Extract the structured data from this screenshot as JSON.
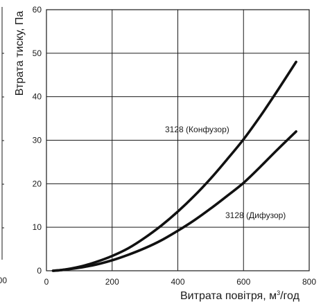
{
  "chart_data": {
    "type": "line",
    "xlabel": {
      "prefix": "Витрата повітря, м",
      "superscript": "3",
      "suffix": "/год"
    },
    "ylabel": "Втрата тиску, Па",
    "xlim": [
      0,
      800
    ],
    "ylim": [
      0,
      60
    ],
    "x_ticks": [
      0,
      200,
      400,
      600,
      800
    ],
    "y_ticks": [
      0,
      10,
      20,
      30,
      40,
      50,
      60
    ],
    "grid": true,
    "series": [
      {
        "name": "3128 (Конфузор)",
        "x": [
          20,
          50,
          100,
          150,
          200,
          250,
          300,
          350,
          400,
          450,
          500,
          550,
          600,
          650,
          700,
          760
        ],
        "values": [
          0.0,
          0.2,
          0.9,
          2.0,
          3.4,
          5.2,
          7.6,
          10.4,
          13.6,
          17.2,
          21.2,
          25.6,
          30.2,
          35.4,
          41.0,
          48.0
        ]
      },
      {
        "name": "3128 (Дифузор)",
        "x": [
          20,
          50,
          100,
          150,
          200,
          250,
          300,
          350,
          400,
          450,
          500,
          550,
          600,
          650,
          700,
          760
        ],
        "values": [
          0.0,
          0.2,
          0.7,
          1.4,
          2.4,
          3.7,
          5.2,
          7.0,
          9.2,
          11.6,
          14.3,
          17.2,
          20.2,
          23.8,
          27.6,
          32.0
        ]
      }
    ]
  },
  "side_fragment": {
    "tick_label": "00"
  }
}
